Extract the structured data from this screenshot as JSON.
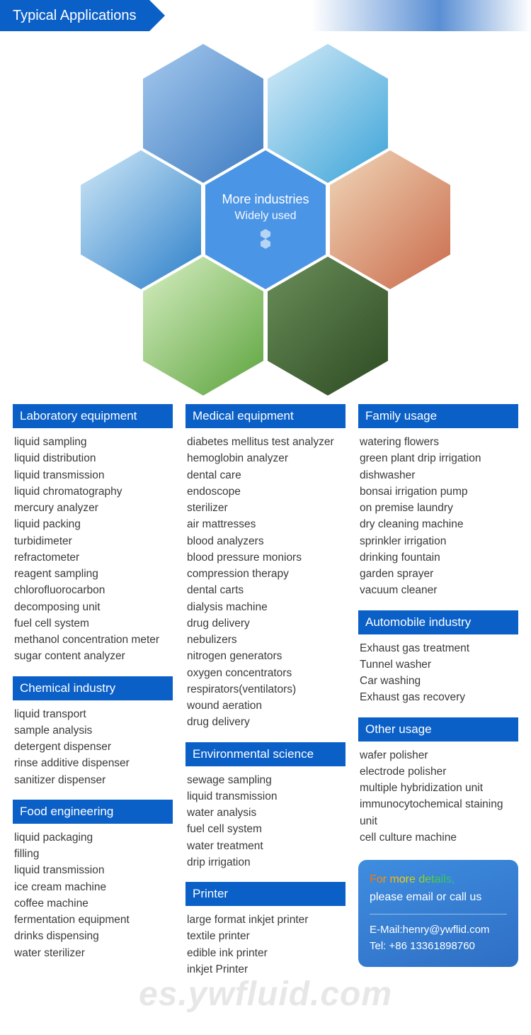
{
  "banner": {
    "title": "Typical Applications"
  },
  "hex": {
    "center_line1": "More industries",
    "center_line2": "Widely used"
  },
  "columns": [
    {
      "sections": [
        {
          "title": "Laboratory equipment",
          "items": [
            "liquid sampling",
            "liquid distribution",
            "liquid transmission",
            "liquid chromatography",
            "mercury analyzer",
            "liquid packing",
            "turbidimeter",
            "refractometer",
            "reagent sampling",
            "chlorofluorocarbon decomposing unit",
            "fuel cell system",
            "methanol concentration meter",
            "sugar content analyzer"
          ]
        },
        {
          "title": "Chemical industry",
          "items": [
            "liquid transport",
            "sample analysis",
            "detergent dispenser",
            "rinse additive dispenser",
            "sanitizer dispenser"
          ]
        },
        {
          "title": "Food engineering",
          "items": [
            "liquid packaging",
            "filling",
            "liquid transmission",
            "ice cream machine",
            "coffee machine",
            "fermentation equipment",
            "drinks dispensing",
            "water sterilizer"
          ]
        }
      ]
    },
    {
      "sections": [
        {
          "title": "Medical equipment",
          "items": [
            "diabetes mellitus test analyzer",
            "hemoglobin analyzer",
            "dental care",
            "endoscope",
            "sterilizer",
            "air mattresses",
            "blood analyzers",
            "blood pressure moniors",
            "compression therapy",
            "dental carts",
            "dialysis machine",
            "drug delivery",
            "nebulizers",
            "nitrogen generators",
            "oxygen concentrators",
            "respirators(ventilators)",
            "wound aeration",
            "drug delivery"
          ]
        },
        {
          "title": "Environmental science",
          "items": [
            "sewage sampling",
            "liquid transmission",
            "water analysis",
            "fuel cell system",
            "water treatment",
            "drip irrigation"
          ]
        },
        {
          "title": "Printer",
          "items": [
            "large format inkjet printer",
            "textile printer",
            "edible ink printer",
            "inkjet Printer"
          ]
        }
      ]
    },
    {
      "sections": [
        {
          "title": "Family usage",
          "items": [
            "watering flowers",
            "green plant drip irrigation",
            "dishwasher",
            "bonsai irrigation pump",
            "on premise laundry",
            "dry cleaning machine",
            "sprinkler irrigation",
            "drinking fountain",
            "garden sprayer",
            "vacuum cleaner"
          ]
        },
        {
          "title": "Automobile industry",
          "items": [
            "Exhaust gas treatment",
            "Tunnel washer",
            "Car washing",
            "Exhaust gas recovery"
          ]
        },
        {
          "title": "Other usage",
          "items": [
            "wafer polisher",
            "electrode polisher",
            "multiple hybridization unit",
            "immunocytochemical staining unit",
            "cell culture machine"
          ]
        }
      ],
      "contact": {
        "cta1": "For more details,",
        "cta2": "please email or call us",
        "email": "E-Mail:henry@ywflid.com",
        "tel": "Tel: +86 13361898760"
      }
    }
  ],
  "watermark": "es.ywfluid.com",
  "colors": {
    "brand_blue": "#0b60c8",
    "hex_blue": "#4b95e6",
    "text": "#3a3a3a",
    "card_grad_a": "#3f8de0",
    "card_grad_b": "#2e6fc4"
  }
}
